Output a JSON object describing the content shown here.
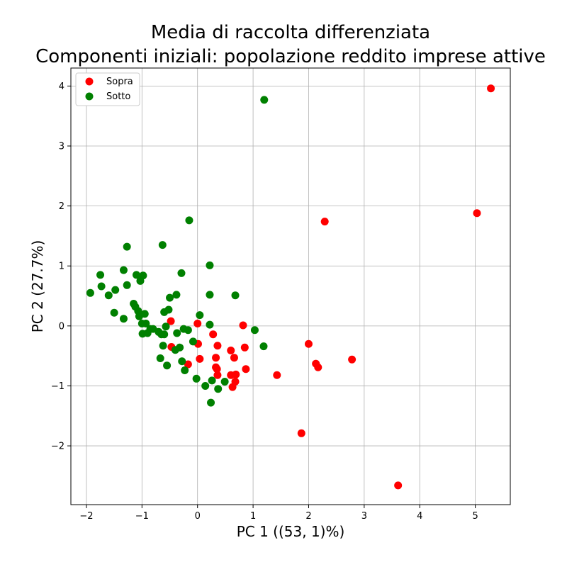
{
  "chart_data": {
    "type": "scatter",
    "title": "Media di raccolta differenziata",
    "subtitle": "Componenti iniziali: popolazione reddito imprese attive",
    "xlabel": "PC 1 ((53, 1)%)",
    "ylabel": "PC 2 (27.7%)",
    "xlim": [
      -2.28,
      5.63
    ],
    "ylim": [
      -2.98,
      4.3
    ],
    "xticks": [
      -2,
      -1,
      0,
      1,
      2,
      3,
      4,
      5
    ],
    "yticks": [
      -2,
      -1,
      0,
      1,
      2,
      3,
      4
    ],
    "xtick_labels": [
      "−2",
      "−1",
      "0",
      "1",
      "2",
      "3",
      "4",
      "5"
    ],
    "ytick_labels": [
      "−2",
      "−1",
      "0",
      "1",
      "2",
      "3",
      "4"
    ],
    "grid": true,
    "legend": "top-left",
    "series": [
      {
        "name": "Sopra",
        "color": "#ff0000",
        "points": [
          [
            5.28,
            3.96
          ],
          [
            5.03,
            1.88
          ],
          [
            2.29,
            1.74
          ],
          [
            3.61,
            -2.66
          ],
          [
            1.87,
            -1.79
          ],
          [
            2.0,
            -0.3
          ],
          [
            2.13,
            -0.63
          ],
          [
            2.17,
            -0.69
          ],
          [
            2.78,
            -0.56
          ],
          [
            1.43,
            -0.82
          ],
          [
            0.82,
            0.01
          ],
          [
            0.85,
            -0.36
          ],
          [
            0.87,
            -0.72
          ],
          [
            0.6,
            -0.41
          ],
          [
            0.66,
            -0.53
          ],
          [
            0.6,
            -0.82
          ],
          [
            0.69,
            -0.81
          ],
          [
            0.68,
            -0.93
          ],
          [
            0.63,
            -1.02
          ],
          [
            0.28,
            -0.14
          ],
          [
            0.36,
            -0.33
          ],
          [
            0.33,
            -0.53
          ],
          [
            0.33,
            -0.69
          ],
          [
            0.35,
            -0.72
          ],
          [
            0.36,
            -0.82
          ],
          [
            0.0,
            0.04
          ],
          [
            0.01,
            -0.3
          ],
          [
            0.04,
            -0.55
          ],
          [
            -0.17,
            -0.64
          ],
          [
            -0.48,
            0.08
          ],
          [
            -0.47,
            -0.35
          ]
        ]
      },
      {
        "name": "Sotto",
        "color": "#008000",
        "points": [
          [
            1.2,
            3.77
          ],
          [
            -0.15,
            1.76
          ],
          [
            -0.63,
            1.35
          ],
          [
            -1.27,
            1.32
          ],
          [
            -1.75,
            0.85
          ],
          [
            -1.33,
            0.93
          ],
          [
            -1.1,
            0.85
          ],
          [
            -0.98,
            0.84
          ],
          [
            -1.03,
            0.75
          ],
          [
            -0.29,
            0.88
          ],
          [
            0.22,
            1.01
          ],
          [
            -1.93,
            0.55
          ],
          [
            -1.73,
            0.66
          ],
          [
            -1.6,
            0.51
          ],
          [
            -1.48,
            0.6
          ],
          [
            -1.27,
            0.68
          ],
          [
            -1.5,
            0.22
          ],
          [
            -1.33,
            0.12
          ],
          [
            -1.15,
            0.37
          ],
          [
            -1.12,
            0.32
          ],
          [
            -1.07,
            0.25
          ],
          [
            -1.05,
            0.16
          ],
          [
            -0.95,
            0.2
          ],
          [
            -0.5,
            0.47
          ],
          [
            -0.38,
            0.52
          ],
          [
            -0.52,
            0.27
          ],
          [
            -0.6,
            0.23
          ],
          [
            0.22,
            0.52
          ],
          [
            0.68,
            0.51
          ],
          [
            -1.0,
            0.04
          ],
          [
            -0.93,
            0.04
          ],
          [
            -0.85,
            -0.05
          ],
          [
            -0.8,
            -0.05
          ],
          [
            -0.99,
            -0.13
          ],
          [
            -0.9,
            -0.12
          ],
          [
            -0.7,
            -0.1
          ],
          [
            -0.65,
            -0.14
          ],
          [
            -0.6,
            -0.14
          ],
          [
            -0.57,
            -0.01
          ],
          [
            -0.37,
            -0.12
          ],
          [
            -0.25,
            -0.05
          ],
          [
            -0.17,
            -0.07
          ],
          [
            0.04,
            0.18
          ],
          [
            0.22,
            0.02
          ],
          [
            1.03,
            -0.07
          ],
          [
            -0.62,
            -0.33
          ],
          [
            -0.4,
            -0.4
          ],
          [
            -0.32,
            -0.36
          ],
          [
            -0.08,
            -0.26
          ],
          [
            1.19,
            -0.34
          ],
          [
            -0.67,
            -0.54
          ],
          [
            -0.55,
            -0.66
          ],
          [
            -0.28,
            -0.59
          ],
          [
            -0.23,
            -0.74
          ],
          [
            -0.02,
            -0.88
          ],
          [
            0.14,
            -1.0
          ],
          [
            0.26,
            -0.91
          ],
          [
            0.37,
            -1.05
          ],
          [
            0.49,
            -0.93
          ],
          [
            0.24,
            -1.28
          ]
        ]
      }
    ]
  }
}
